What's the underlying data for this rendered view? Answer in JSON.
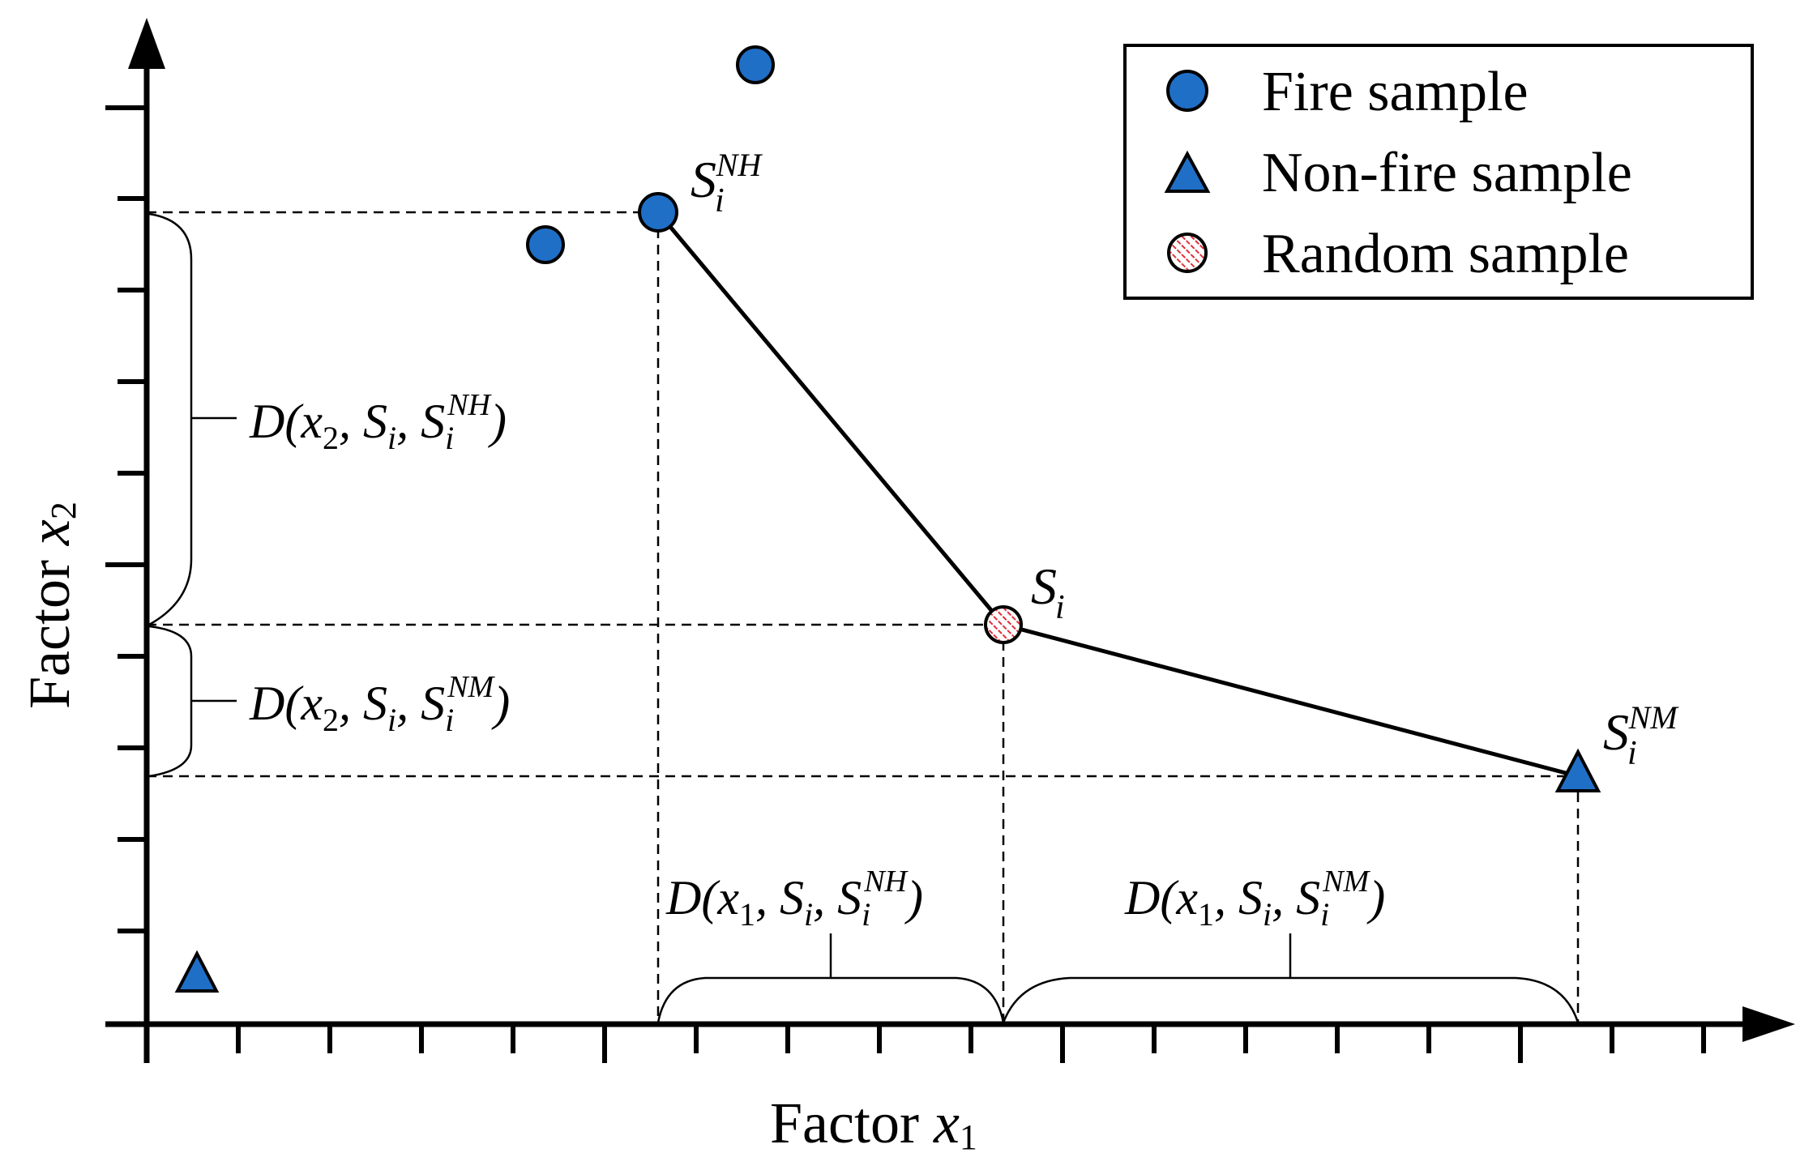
{
  "axes": {
    "x_label_text": "Factor ",
    "x_label_var": "x",
    "x_label_sub": "1",
    "y_label_text": "Factor ",
    "y_label_var": "x",
    "y_label_sub": "2"
  },
  "legend": {
    "items": [
      {
        "label": "Fire sample",
        "symbol": "circle-icon"
      },
      {
        "label": "Non-fire sample",
        "symbol": "triangle-icon"
      },
      {
        "label": "Random sample",
        "symbol": "hatched-circle-icon"
      }
    ]
  },
  "points": {
    "s_nh": {
      "base": "S",
      "sub": "i",
      "sup": "NH"
    },
    "s_i": {
      "base": "S",
      "sub": "i"
    },
    "s_nm": {
      "base": "S",
      "sub": "i",
      "sup": "NM"
    }
  },
  "distances": {
    "d_x2_nh": {
      "open": "D(",
      "v": "x",
      "vsub": "2",
      "mid": ", ",
      "s": "S",
      "ssub": "i",
      "comma": ", ",
      "s2": "S",
      "s2sub": "i",
      "s2sup": "NH",
      "close": ")"
    },
    "d_x2_nm": {
      "open": "D(",
      "v": "x",
      "vsub": "2",
      "mid": ", ",
      "s": "S",
      "ssub": "i",
      "comma": ", ",
      "s2": "S",
      "s2sub": "i",
      "s2sup": "NM",
      "close": ")"
    },
    "d_x1_nh": {
      "open": "D(",
      "v": "x",
      "vsub": "1",
      "mid": ", ",
      "s": "S",
      "ssub": "i",
      "comma": ", ",
      "s2": "S",
      "s2sub": "i",
      "s2sup": "NH",
      "close": ")"
    },
    "d_x1_nm": {
      "open": "D(",
      "v": "x",
      "vsub": "1",
      "mid": ", ",
      "s": "S",
      "ssub": "i",
      "comma": ", ",
      "s2": "S",
      "s2sub": "i",
      "s2sup": "NM",
      "close": ")"
    }
  },
  "colors": {
    "marker_fill": "#1f6fc6",
    "hatch": "#e0303a",
    "axis": "#000000"
  }
}
